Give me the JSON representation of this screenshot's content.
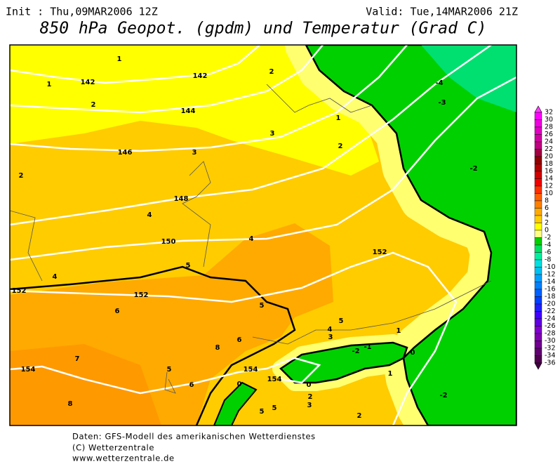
{
  "header": {
    "init": "Init : Thu,09MAR2006 12Z",
    "valid": "Valid: Tue,14MAR2006 21Z",
    "title": "850 hPa Geopot. (gpdm) und Temperatur (Grad C)"
  },
  "map": {
    "contour_labels": [
      "1",
      "1",
      "142",
      "142",
      "2",
      "2",
      "144",
      "3",
      "1",
      "2",
      "146",
      "3",
      "2",
      "-4",
      "-3",
      "-2",
      "148",
      "4",
      "150",
      "4",
      "152",
      "5",
      "4",
      "152",
      "152",
      "5",
      "6",
      "5",
      "4",
      "3",
      "1",
      "8",
      "6",
      "-2",
      "-1",
      "0",
      "7",
      "154",
      "5",
      "154",
      "1",
      "154",
      "6",
      "0",
      "0",
      "2",
      "3",
      "-2",
      "8",
      "5",
      "5",
      "2"
    ]
  },
  "colorbar": {
    "labels": [
      "32",
      "30",
      "28",
      "26",
      "24",
      "22",
      "20",
      "18",
      "16",
      "14",
      "12",
      "10",
      "8",
      "6",
      "4",
      "2",
      "0",
      "-2",
      "-4",
      "-6",
      "-8",
      "-10",
      "-12",
      "-14",
      "-16",
      "-18",
      "-20",
      "-22",
      "-24",
      "-26",
      "-28",
      "-30",
      "-32",
      "-34",
      "-36"
    ]
  },
  "footer": {
    "lines": [
      "Daten: GFS-Modell des amerikanischen Wetterdienstes",
      "(C) Wetterzentrale",
      "www.wetterzentrale.de"
    ]
  }
}
